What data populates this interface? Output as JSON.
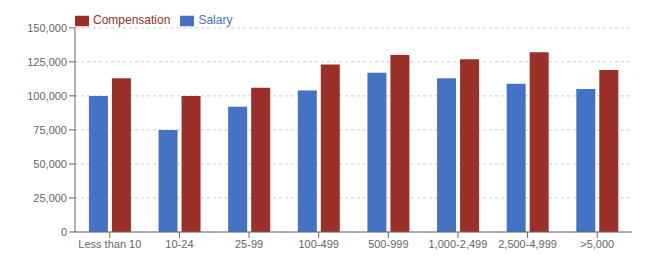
{
  "chart_data": {
    "type": "bar",
    "categories": [
      "Less than 10",
      "10-24",
      "25-99",
      "100-499",
      "500-999",
      "1,000-2,499",
      "2,500-4,999",
      ">5,000"
    ],
    "series": [
      {
        "name": "Salary",
        "color": "#4472C4",
        "values": [
          100000,
          75000,
          92000,
          104000,
          117000,
          113000,
          109000,
          105000
        ]
      },
      {
        "name": "Compensation",
        "color": "#9B3028",
        "values": [
          113000,
          100000,
          106000,
          123000,
          130000,
          127000,
          132000,
          119000
        ]
      }
    ],
    "ylim": [
      0,
      150000
    ],
    "yticks": [
      0,
      {
        "value": 25000,
        "label": "25,000"
      },
      {
        "value": 50000,
        "label": "50,000"
      },
      {
        "value": 75000,
        "label": "75,000"
      },
      {
        "value": 100000,
        "label": "100,000"
      },
      {
        "value": 125000,
        "label": "125,000"
      },
      {
        "value": 150000,
        "label": "150,000"
      }
    ],
    "grid": true,
    "legend": "upper left"
  }
}
